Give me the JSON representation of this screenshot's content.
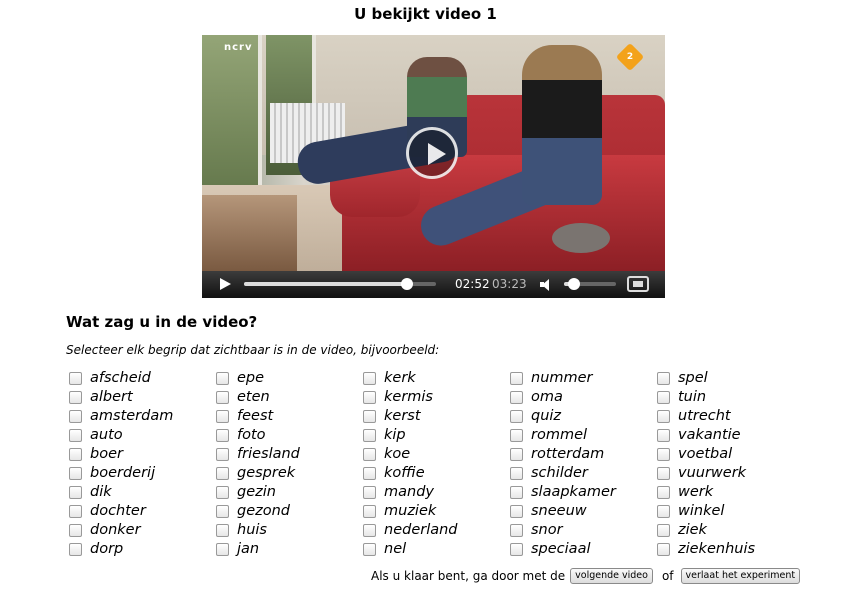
{
  "title": "U bekijkt video 1",
  "player": {
    "time_current": "02:52",
    "time_total": "03:23",
    "progress_fraction": 0.847,
    "volume_fraction": 0.2,
    "logo_left": "ncrv",
    "logo_right": "2",
    "icons": [
      "play-icon",
      "volume-icon",
      "fullscreen-icon"
    ]
  },
  "question": {
    "heading": "Wat zag u in de video?",
    "instruction": "Selecteer elk begrip dat zichtbaar is in de video, bijvoorbeeld:"
  },
  "columns": [
    [
      "afscheid",
      "albert",
      "amsterdam",
      "auto",
      "boer",
      "boerderij",
      "dik",
      "dochter",
      "donker",
      "dorp"
    ],
    [
      "epe",
      "eten",
      "feest",
      "foto",
      "friesland",
      "gesprek",
      "gezin",
      "gezond",
      "huis",
      "jan"
    ],
    [
      "kerk",
      "kermis",
      "kerst",
      "kip",
      "koe",
      "koffie",
      "mandy",
      "muziek",
      "nederland",
      "nel"
    ],
    [
      "nummer",
      "oma",
      "quiz",
      "rommel",
      "rotterdam",
      "schilder",
      "slaapkamer",
      "sneeuw",
      "snor",
      "speciaal"
    ],
    [
      "spel",
      "tuin",
      "utrecht",
      "vakantie",
      "voetbal",
      "vuurwerk",
      "werk",
      "winkel",
      "ziek",
      "ziekenhuis"
    ]
  ],
  "footer": {
    "text_before": "Als u klaar bent, ga door met de",
    "next_button": "volgende video",
    "text_between": "of",
    "leave_button": "verlaat het experiment"
  }
}
